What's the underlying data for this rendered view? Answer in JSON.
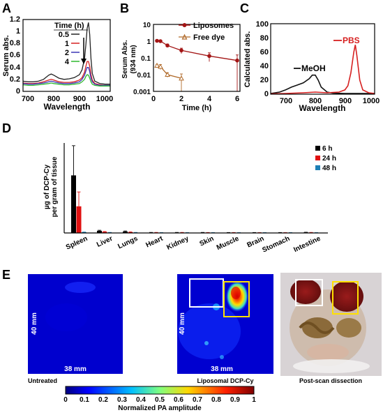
{
  "figure": {
    "panel_labels": {
      "a": "A",
      "b": "B",
      "c": "C",
      "d": "D",
      "e": "E"
    }
  },
  "chart_data": [
    {
      "id": "A",
      "type": "line",
      "xlabel": "Wavelength",
      "ylabel": "Serum abs.",
      "xlim": [
        680,
        1020
      ],
      "ylim": [
        0,
        1.2
      ],
      "xticks": [
        "700",
        "800",
        "900",
        "1000"
      ],
      "yticks": [
        "0",
        "0.2",
        "0.4",
        "0.6",
        "0.8",
        "1",
        "1.2"
      ],
      "legend_title": "Time (h)",
      "series": [
        {
          "name": "0.5",
          "color": "#222222",
          "x": [
            680,
            700,
            720,
            740,
            760,
            780,
            790,
            800,
            820,
            840,
            860,
            880,
            900,
            910,
            920,
            925,
            930,
            935,
            940,
            945,
            950,
            960,
            980,
            1000,
            1020
          ],
          "y": [
            0.17,
            0.16,
            0.16,
            0.17,
            0.2,
            0.27,
            0.29,
            0.27,
            0.22,
            0.2,
            0.21,
            0.23,
            0.28,
            0.36,
            0.55,
            0.78,
            1.05,
            1.15,
            0.95,
            0.55,
            0.3,
            0.17,
            0.13,
            0.12,
            0.12
          ]
        },
        {
          "name": "1",
          "color": "#d62020",
          "x": [
            680,
            700,
            720,
            740,
            760,
            780,
            790,
            800,
            820,
            840,
            860,
            880,
            900,
            910,
            920,
            925,
            930,
            935,
            940,
            945,
            950,
            960,
            980,
            1000,
            1020
          ],
          "y": [
            0.14,
            0.13,
            0.13,
            0.14,
            0.16,
            0.19,
            0.2,
            0.19,
            0.16,
            0.15,
            0.15,
            0.16,
            0.19,
            0.23,
            0.32,
            0.42,
            0.5,
            0.5,
            0.42,
            0.28,
            0.19,
            0.13,
            0.11,
            0.1,
            0.1
          ]
        },
        {
          "name": "2",
          "color": "#3a35b5",
          "x": [
            680,
            700,
            720,
            740,
            760,
            780,
            790,
            800,
            820,
            840,
            860,
            880,
            900,
            910,
            920,
            925,
            930,
            935,
            940,
            945,
            950,
            960,
            980,
            1000,
            1020
          ],
          "y": [
            0.13,
            0.12,
            0.12,
            0.13,
            0.14,
            0.16,
            0.17,
            0.16,
            0.14,
            0.13,
            0.13,
            0.14,
            0.16,
            0.2,
            0.27,
            0.34,
            0.4,
            0.4,
            0.33,
            0.22,
            0.16,
            0.12,
            0.1,
            0.1,
            0.1
          ]
        },
        {
          "name": "4",
          "color": "#2eb82e",
          "x": [
            680,
            700,
            720,
            740,
            760,
            780,
            790,
            800,
            820,
            840,
            860,
            880,
            900,
            910,
            920,
            925,
            930,
            935,
            940,
            945,
            950,
            960,
            980,
            1000,
            1020
          ],
          "y": [
            0.11,
            0.1,
            0.1,
            0.11,
            0.12,
            0.13,
            0.14,
            0.13,
            0.12,
            0.11,
            0.11,
            0.12,
            0.13,
            0.16,
            0.2,
            0.25,
            0.28,
            0.27,
            0.22,
            0.16,
            0.12,
            0.1,
            0.09,
            0.09,
            0.09
          ]
        }
      ]
    },
    {
      "id": "B",
      "type": "line",
      "xlabel": "Time (h)",
      "ylabel": "Serum Abs.",
      "ylabel2": "(934 nm)",
      "yscale": "log",
      "xlim": [
        0,
        6.2
      ],
      "ylim": [
        0.001,
        10
      ],
      "xticks": [
        "0",
        "2",
        "4",
        "6"
      ],
      "yticks": [
        "0.001",
        "0.01",
        "0.1",
        "1",
        "10"
      ],
      "series": [
        {
          "name": "Liposomes",
          "color": "#a31515",
          "marker": "circle",
          "x": [
            0.25,
            0.5,
            1,
            2,
            4,
            6
          ],
          "y": [
            1.05,
            1.0,
            0.55,
            0.28,
            0.13,
            0.07
          ],
          "err": [
            0.15,
            0.15,
            0.12,
            0.1,
            0.07,
            0.08
          ]
        },
        {
          "name": "Free dye",
          "color": "#b06a2a",
          "marker": "triangle",
          "x": [
            0.25,
            0.5,
            1,
            2
          ],
          "y": [
            0.035,
            0.03,
            0.01,
            0.006
          ],
          "err": [
            0.005,
            0.01,
            0.003,
            0.005
          ]
        }
      ]
    },
    {
      "id": "C",
      "type": "line",
      "xlabel": "Wavelength",
      "ylabel": "Calculated abs.",
      "xlim": [
        650,
        1000
      ],
      "ylim": [
        0,
        100
      ],
      "xticks": [
        "700",
        "800",
        "900",
        "1000"
      ],
      "yticks": [
        "0",
        "20",
        "40",
        "60",
        "80",
        "100"
      ],
      "series": [
        {
          "name": "MeOH",
          "color": "#111111",
          "x": [
            650,
            680,
            700,
            720,
            740,
            760,
            780,
            790,
            800,
            810,
            820,
            840,
            860,
            900,
            950,
            1000
          ],
          "y": [
            1,
            3,
            6,
            10,
            13,
            16,
            22,
            27,
            27,
            20,
            10,
            3,
            1.5,
            1,
            1,
            1
          ]
        },
        {
          "name": "PBS",
          "color": "#d62020",
          "x": [
            650,
            700,
            760,
            800,
            840,
            880,
            900,
            910,
            920,
            930,
            935,
            940,
            950,
            960,
            980,
            1000
          ],
          "y": [
            0.5,
            1,
            2,
            3,
            2,
            3,
            6,
            12,
            30,
            60,
            70,
            55,
            20,
            6,
            2,
            1
          ]
        }
      ]
    },
    {
      "id": "D",
      "type": "bar",
      "ylabel": "µg of DCP-Cy",
      "ylabel2": "per gram of tissue",
      "ylim": [
        0,
        500
      ],
      "categories": [
        "Spleen",
        "Liver",
        "Lungs",
        "Heart",
        "Kidney",
        "Skin",
        "Muscle",
        "Brain",
        "Stomach",
        "Intestine"
      ],
      "series": [
        {
          "name": "6 h",
          "color": "#000000",
          "values": [
            320,
            12,
            8,
            2,
            2,
            2,
            1.5,
            1.5,
            1.5,
            3
          ],
          "err": [
            165,
            3,
            3,
            1,
            1,
            1,
            1,
            1,
            1,
            1
          ]
        },
        {
          "name": "24 h",
          "color": "#e01010",
          "values": [
            148,
            6,
            4,
            2,
            2,
            1.5,
            1.5,
            1,
            1,
            2
          ],
          "err": [
            80,
            2,
            2,
            1,
            1,
            1,
            1,
            1,
            1,
            1
          ]
        },
        {
          "name": "48 h",
          "color": "#1e7fb5",
          "values": [
            4,
            2,
            2,
            1,
            1,
            1,
            1,
            1,
            1,
            1
          ],
          "err": [
            1,
            1,
            1,
            1,
            1,
            1,
            1,
            1,
            1,
            1
          ]
        }
      ]
    }
  ],
  "panel_e": {
    "untreated": {
      "caption": "Untreated",
      "size_label_v": "40 mm",
      "size_label_h": "38 mm"
    },
    "liposomal": {
      "caption": "Liposomal DCP-Cy",
      "size_label_v": "40 mm",
      "size_label_h": "38 mm"
    },
    "dissection": {
      "caption": "Post-scan dissection"
    },
    "colorbar": {
      "label": "Normalized PA amplitude",
      "ticks": [
        "0",
        "0.1",
        "0.2",
        "0.3",
        "0.4",
        "0.5",
        "0.6",
        "0.7",
        "0.8",
        "0.9",
        "1"
      ]
    }
  }
}
